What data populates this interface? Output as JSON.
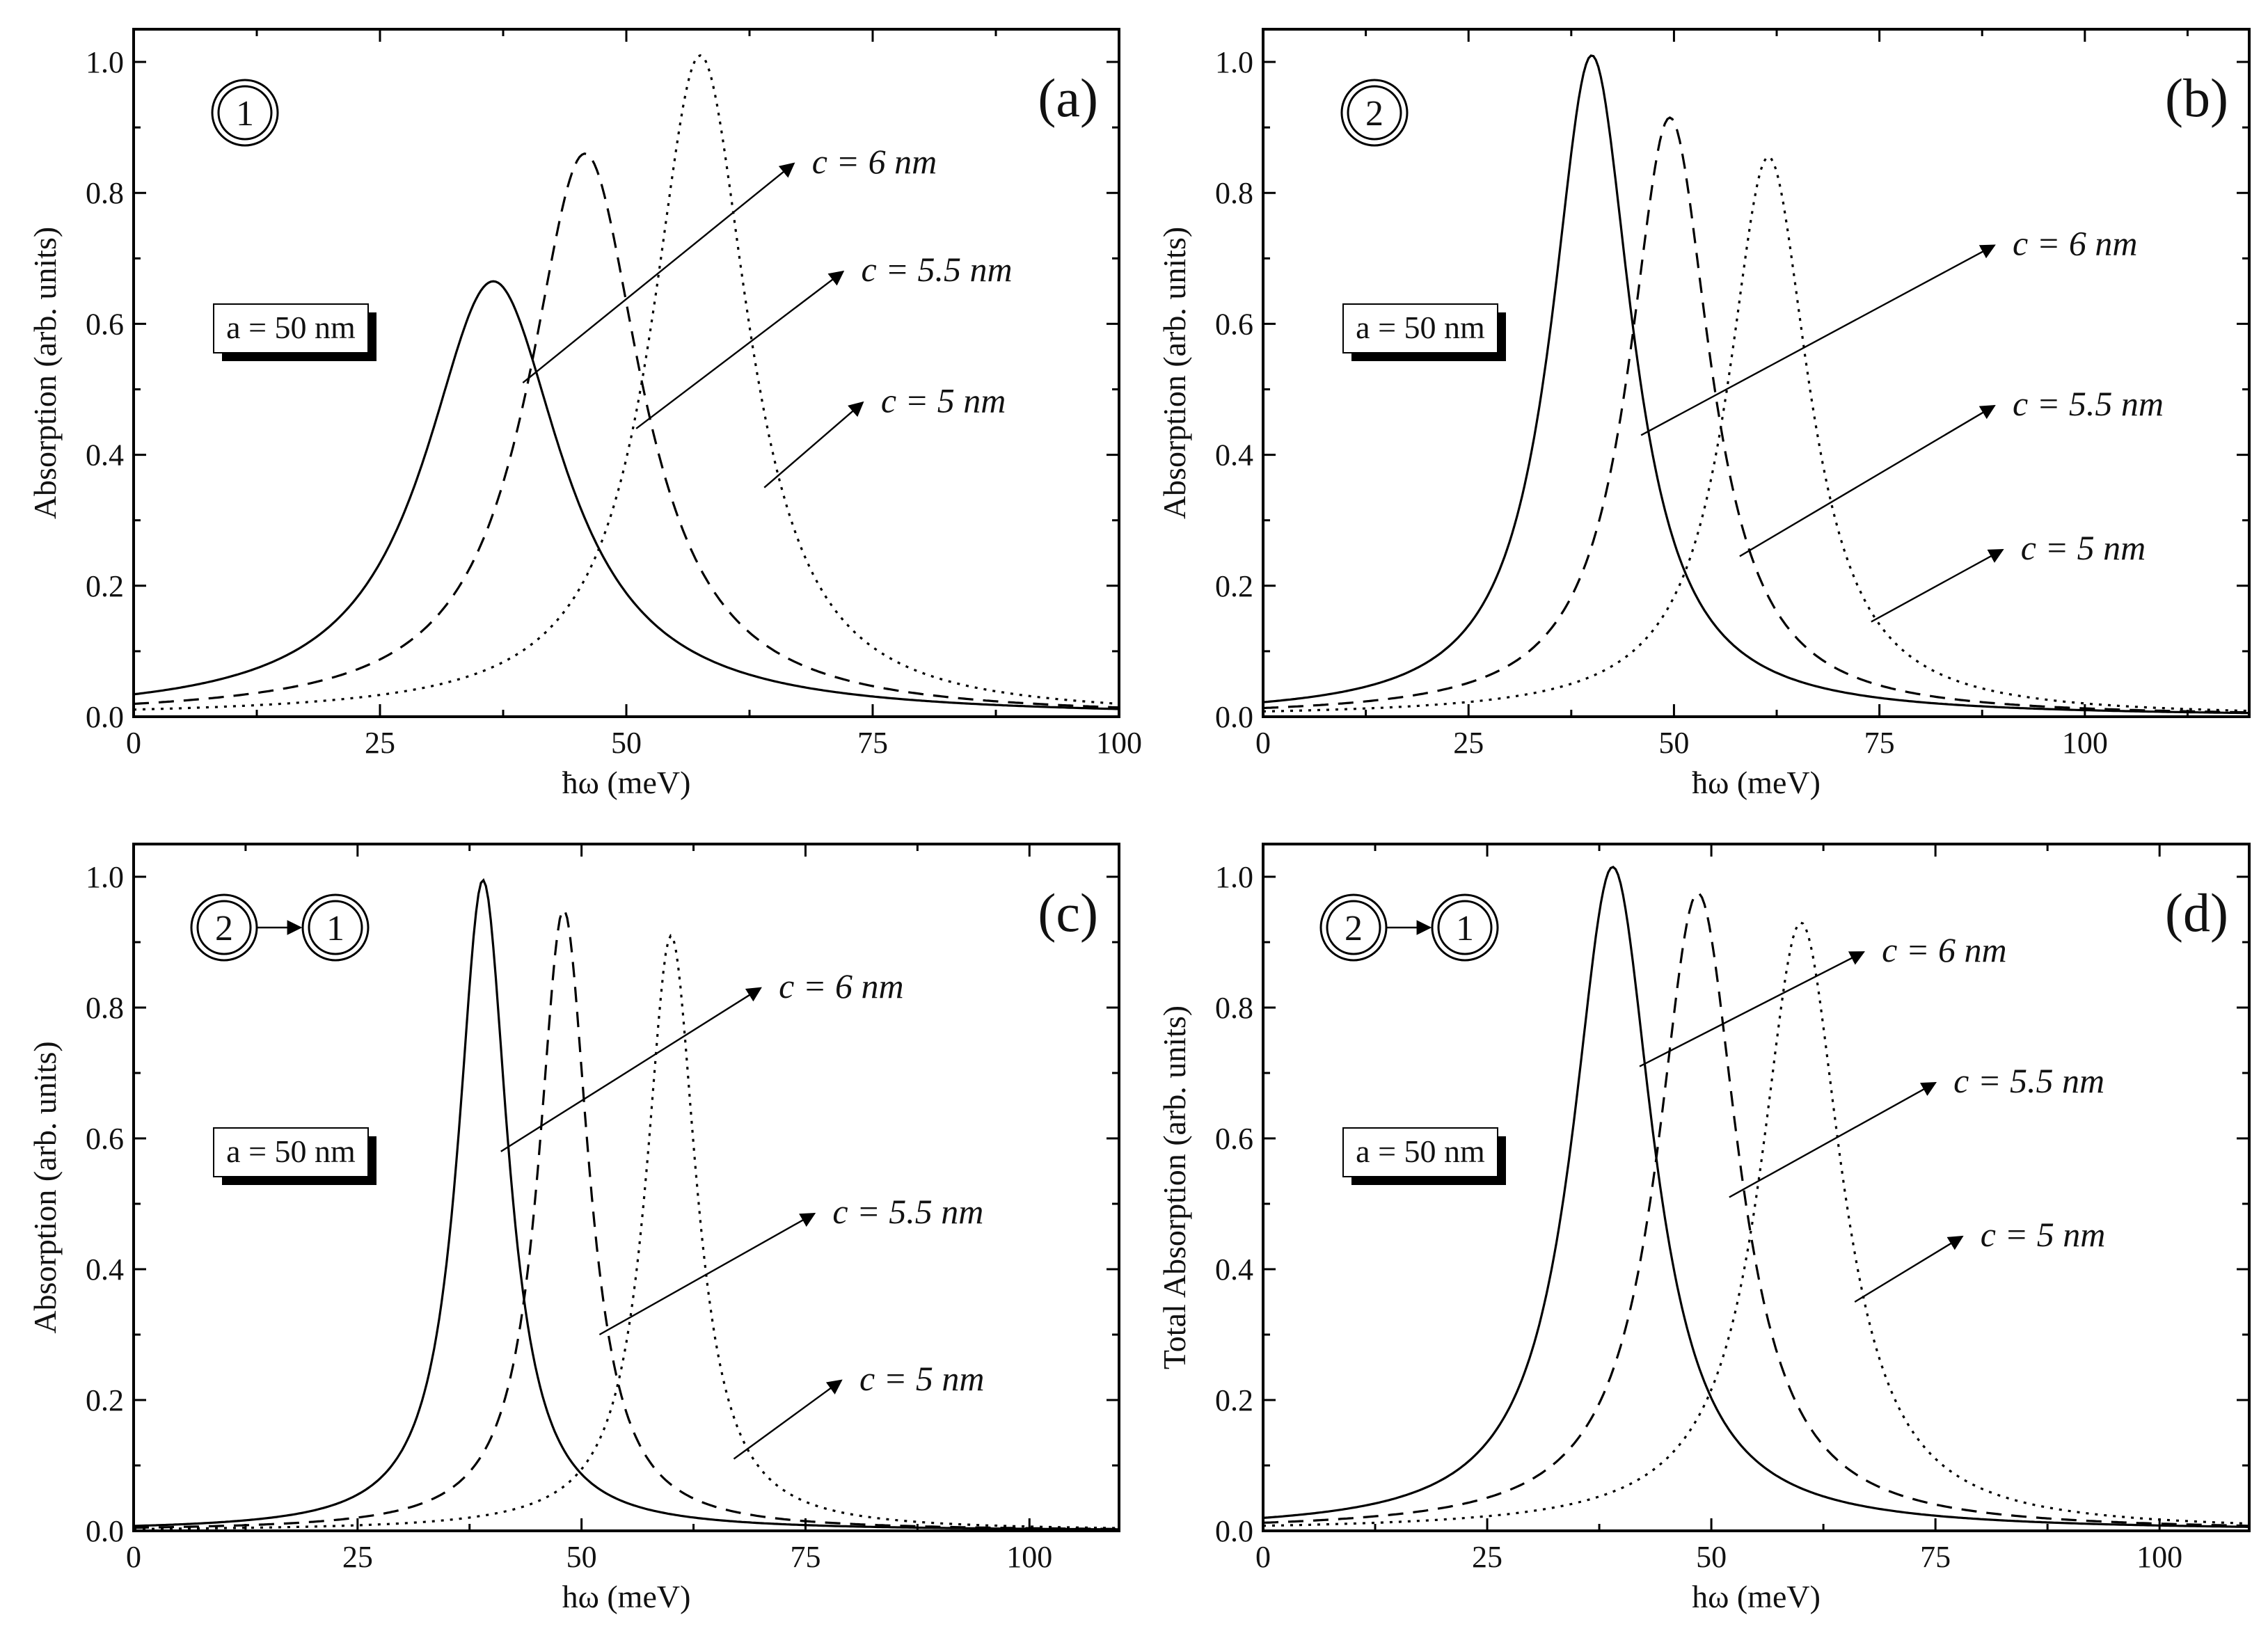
{
  "chart_data": [
    {
      "type": "line",
      "panel": "(a)",
      "state_marker": {
        "from": "",
        "to": "1"
      },
      "param_box": "a = 50 nm",
      "xlabel": "ħω (meV)",
      "ylabel": "Absorption (arb. units)",
      "xlim": [
        0,
        100
      ],
      "ylim": [
        0,
        1.05
      ],
      "xticks": [
        0,
        25,
        50,
        75,
        100
      ],
      "xtick_labels": [
        "0",
        "25",
        "50",
        "75",
        "100"
      ],
      "yticks": [
        0.0,
        0.2,
        0.4,
        0.6,
        0.8,
        1.0
      ],
      "ytick_labels": [
        "0.0",
        "0.2",
        "0.4",
        "0.6",
        "0.8",
        "1.0"
      ],
      "series": [
        {
          "name": "c = 6 nm",
          "style": "solid",
          "peak_x": 36.5,
          "peak_y": 0.665,
          "hwhm": 8.5
        },
        {
          "name": "c = 5.5 nm",
          "style": "dashed",
          "peak_x": 45.8,
          "peak_y": 0.86,
          "hwhm": 7.0
        },
        {
          "name": "c = 5 nm",
          "style": "dotted",
          "peak_x": 57.5,
          "peak_y": 1.01,
          "hwhm": 6.0
        }
      ],
      "annotations": [
        {
          "text": "c = 6 nm",
          "target_x": 39.5,
          "target_y": 0.51,
          "tip_x": 67,
          "tip_y": 0.845
        },
        {
          "text": "c = 5.5 nm",
          "target_x": 51,
          "target_y": 0.44,
          "tip_x": 72,
          "tip_y": 0.68
        },
        {
          "text": "c = 5 nm",
          "target_x": 64,
          "target_y": 0.35,
          "tip_x": 74,
          "tip_y": 0.48
        }
      ]
    },
    {
      "type": "line",
      "panel": "(b)",
      "state_marker": {
        "from": "",
        "to": "2"
      },
      "param_box": "a = 50 nm",
      "xlabel": "ħω (meV)",
      "ylabel": "Absorption (arb. units)",
      "xlim": [
        0,
        120
      ],
      "ylim": [
        0,
        1.05
      ],
      "xticks": [
        0,
        25,
        50,
        75,
        100
      ],
      "xtick_labels": [
        "0",
        "25",
        "50",
        "75",
        "100"
      ],
      "yticks": [
        0.0,
        0.2,
        0.4,
        0.6,
        0.8,
        1.0
      ],
      "ytick_labels": [
        "0.0",
        "0.2",
        "0.4",
        "0.6",
        "0.8",
        "1.0"
      ],
      "series": [
        {
          "name": "c = 6 nm",
          "style": "solid",
          "peak_x": 40.0,
          "peak_y": 1.01,
          "hwhm": 6.0
        },
        {
          "name": "c = 5.5 nm",
          "style": "dashed",
          "peak_x": 49.5,
          "peak_y": 0.915,
          "hwhm": 6.0
        },
        {
          "name": "c = 5 nm",
          "style": "dotted",
          "peak_x": 61.5,
          "peak_y": 0.855,
          "hwhm": 6.0
        }
      ],
      "annotations": [
        {
          "text": "c = 6 nm",
          "target_x": 46,
          "target_y": 0.43,
          "tip_x": 89,
          "tip_y": 0.72
        },
        {
          "text": "c = 5.5 nm",
          "target_x": 58,
          "target_y": 0.245,
          "tip_x": 89,
          "tip_y": 0.475
        },
        {
          "text": "c = 5 nm",
          "target_x": 74,
          "target_y": 0.145,
          "tip_x": 90,
          "tip_y": 0.255
        }
      ]
    },
    {
      "type": "line",
      "panel": "(c)",
      "state_marker": {
        "from": "2",
        "to": "1"
      },
      "param_box": "a = 50 nm",
      "xlabel": "hω (meV)",
      "ylabel": "Absorption (arb. units)",
      "xlim": [
        0,
        110
      ],
      "ylim": [
        0,
        1.05
      ],
      "xticks": [
        0,
        25,
        50,
        75,
        100
      ],
      "xtick_labels": [
        "0",
        "25",
        "50",
        "75",
        "100"
      ],
      "yticks": [
        0.0,
        0.2,
        0.4,
        0.6,
        0.8,
        1.0
      ],
      "ytick_labels": [
        "0.0",
        "0.2",
        "0.4",
        "0.6",
        "0.8",
        "1.0"
      ],
      "series": [
        {
          "name": "c = 6 nm",
          "style": "solid",
          "peak_x": 39.0,
          "peak_y": 0.995,
          "hwhm": 3.4
        },
        {
          "name": "c = 5.5 nm",
          "style": "dashed",
          "peak_x": 48.0,
          "peak_y": 0.95,
          "hwhm": 3.4
        },
        {
          "name": "c = 5 nm",
          "style": "dotted",
          "peak_x": 60.0,
          "peak_y": 0.91,
          "hwhm": 3.4
        }
      ],
      "annotations": [
        {
          "text": "c = 6 nm",
          "target_x": 41,
          "target_y": 0.58,
          "tip_x": 70,
          "tip_y": 0.83
        },
        {
          "text": "c = 5.5 nm",
          "target_x": 52,
          "target_y": 0.3,
          "tip_x": 76,
          "tip_y": 0.485
        },
        {
          "text": "c = 5 nm",
          "target_x": 67,
          "target_y": 0.11,
          "tip_x": 79,
          "tip_y": 0.23
        }
      ]
    },
    {
      "type": "line",
      "panel": "(d)",
      "state_marker": {
        "from": "2",
        "to": "1"
      },
      "param_box": "a = 50 nm",
      "xlabel": "hω (meV)",
      "ylabel": "Total Absorption (arb. units)",
      "xlim": [
        0,
        110
      ],
      "ylim": [
        0,
        1.05
      ],
      "xticks": [
        0,
        25,
        50,
        75,
        100
      ],
      "xtick_labels": [
        "0",
        "25",
        "50",
        "75",
        "100"
      ],
      "yticks": [
        0.0,
        0.2,
        0.4,
        0.6,
        0.8,
        1.0
      ],
      "ytick_labels": [
        "0.0",
        "0.2",
        "0.4",
        "0.6",
        "0.8",
        "1.0"
      ],
      "series": [
        {
          "name": "c = 6 nm",
          "style": "solid",
          "peak_x": 39.0,
          "peak_y": 1.015,
          "hwhm": 5.5
        },
        {
          "name": "c = 5.5 nm",
          "style": "dashed",
          "peak_x": 48.5,
          "peak_y": 0.975,
          "hwhm": 5.5
        },
        {
          "name": "c = 5 nm",
          "style": "dotted",
          "peak_x": 60.0,
          "peak_y": 0.93,
          "hwhm": 5.5
        }
      ],
      "annotations": [
        {
          "text": "c = 6 nm",
          "target_x": 42,
          "target_y": 0.71,
          "tip_x": 67,
          "tip_y": 0.885
        },
        {
          "text": "c = 5.5 nm",
          "target_x": 52,
          "target_y": 0.51,
          "tip_x": 75,
          "tip_y": 0.685
        },
        {
          "text": "c = 5 nm",
          "target_x": 66,
          "target_y": 0.35,
          "tip_x": 78,
          "tip_y": 0.45
        }
      ]
    }
  ]
}
